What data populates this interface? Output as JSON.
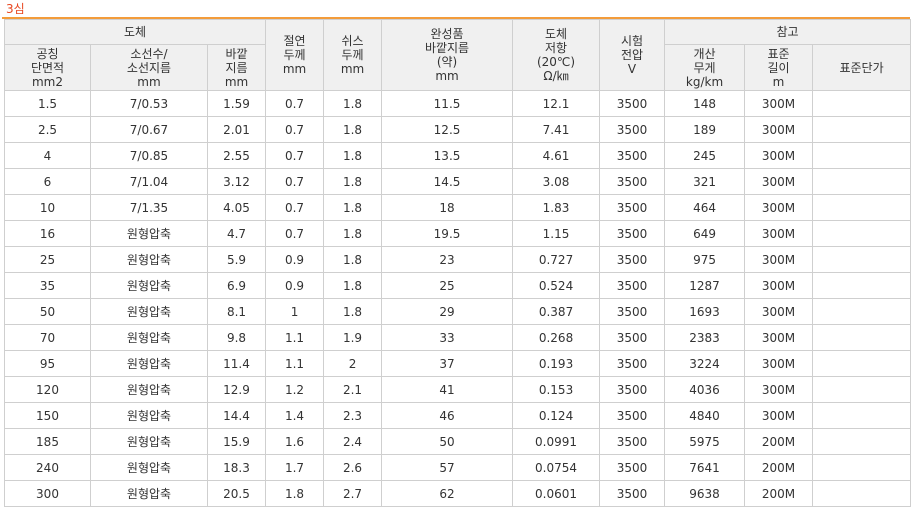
{
  "title": "3심",
  "headers": {
    "conductor_group": "도체",
    "insulation_thickness": "절연\n두께\nmm",
    "sheath_thickness": "쉬스\n두께\nmm",
    "finished_od": "완성품\n바깥지름\n(약)\nmm",
    "conductor_resistance": "도체\n저항\n(20℃)\nΩ/㎞",
    "test_voltage": "시험\n전압\nV",
    "reference_group": "참고",
    "nominal_area": "공칭\n단면적\nmm2",
    "strand": "소선수/\n소선지름\nmm",
    "conductor_od": "바깥\n지름\nmm",
    "weight": "개산\n무게\nkg/km",
    "std_length": "표준\n길이\nm",
    "unit_price": "표준단가"
  },
  "rows": [
    [
      "1.5",
      "7/0.53",
      "1.59",
      "0.7",
      "1.8",
      "11.5",
      "12.1",
      "3500",
      "148",
      "300M",
      ""
    ],
    [
      "2.5",
      "7/0.67",
      "2.01",
      "0.7",
      "1.8",
      "12.5",
      "7.41",
      "3500",
      "189",
      "300M",
      ""
    ],
    [
      "4",
      "7/0.85",
      "2.55",
      "0.7",
      "1.8",
      "13.5",
      "4.61",
      "3500",
      "245",
      "300M",
      ""
    ],
    [
      "6",
      "7/1.04",
      "3.12",
      "0.7",
      "1.8",
      "14.5",
      "3.08",
      "3500",
      "321",
      "300M",
      ""
    ],
    [
      "10",
      "7/1.35",
      "4.05",
      "0.7",
      "1.8",
      "18",
      "1.83",
      "3500",
      "464",
      "300M",
      ""
    ],
    [
      "16",
      "원형압축",
      "4.7",
      "0.7",
      "1.8",
      "19.5",
      "1.15",
      "3500",
      "649",
      "300M",
      ""
    ],
    [
      "25",
      "원형압축",
      "5.9",
      "0.9",
      "1.8",
      "23",
      "0.727",
      "3500",
      "975",
      "300M",
      ""
    ],
    [
      "35",
      "원형압축",
      "6.9",
      "0.9",
      "1.8",
      "25",
      "0.524",
      "3500",
      "1287",
      "300M",
      ""
    ],
    [
      "50",
      "원형압축",
      "8.1",
      "1",
      "1.8",
      "29",
      "0.387",
      "3500",
      "1693",
      "300M",
      ""
    ],
    [
      "70",
      "원형압축",
      "9.8",
      "1.1",
      "1.9",
      "33",
      "0.268",
      "3500",
      "2383",
      "300M",
      ""
    ],
    [
      "95",
      "원형압축",
      "11.4",
      "1.1",
      "2",
      "37",
      "0.193",
      "3500",
      "3224",
      "300M",
      ""
    ],
    [
      "120",
      "원형압축",
      "12.9",
      "1.2",
      "2.1",
      "41",
      "0.153",
      "3500",
      "4036",
      "300M",
      ""
    ],
    [
      "150",
      "원형압축",
      "14.4",
      "1.4",
      "2.3",
      "46",
      "0.124",
      "3500",
      "4840",
      "300M",
      ""
    ],
    [
      "185",
      "원형압축",
      "15.9",
      "1.6",
      "2.4",
      "50",
      "0.0991",
      "3500",
      "5975",
      "200M",
      ""
    ],
    [
      "240",
      "원형압축",
      "18.3",
      "1.7",
      "2.6",
      "57",
      "0.0754",
      "3500",
      "7641",
      "200M",
      ""
    ],
    [
      "300",
      "원형압축",
      "20.5",
      "1.8",
      "2.7",
      "62",
      "0.0601",
      "3500",
      "9638",
      "200M",
      ""
    ]
  ]
}
